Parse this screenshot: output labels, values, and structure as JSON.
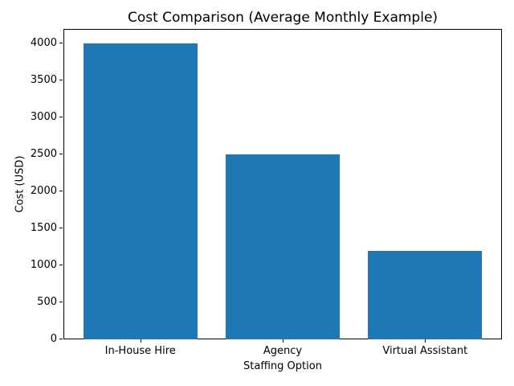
{
  "chart_data": {
    "type": "bar",
    "title": "Cost Comparison (Average Monthly Example)",
    "xlabel": "Staffing Option",
    "ylabel": "Cost (USD)",
    "categories": [
      "In-House Hire",
      "Agency",
      "Virtual Assistant"
    ],
    "values": [
      4000,
      2500,
      1200
    ],
    "ylim": [
      0,
      4200
    ],
    "yticks": [
      0,
      500,
      1000,
      1500,
      2000,
      2500,
      3000,
      3500,
      4000
    ],
    "bar_color": "#1f77b4",
    "bar_width_fraction": 0.8,
    "grid": false,
    "legend_position": "none"
  }
}
